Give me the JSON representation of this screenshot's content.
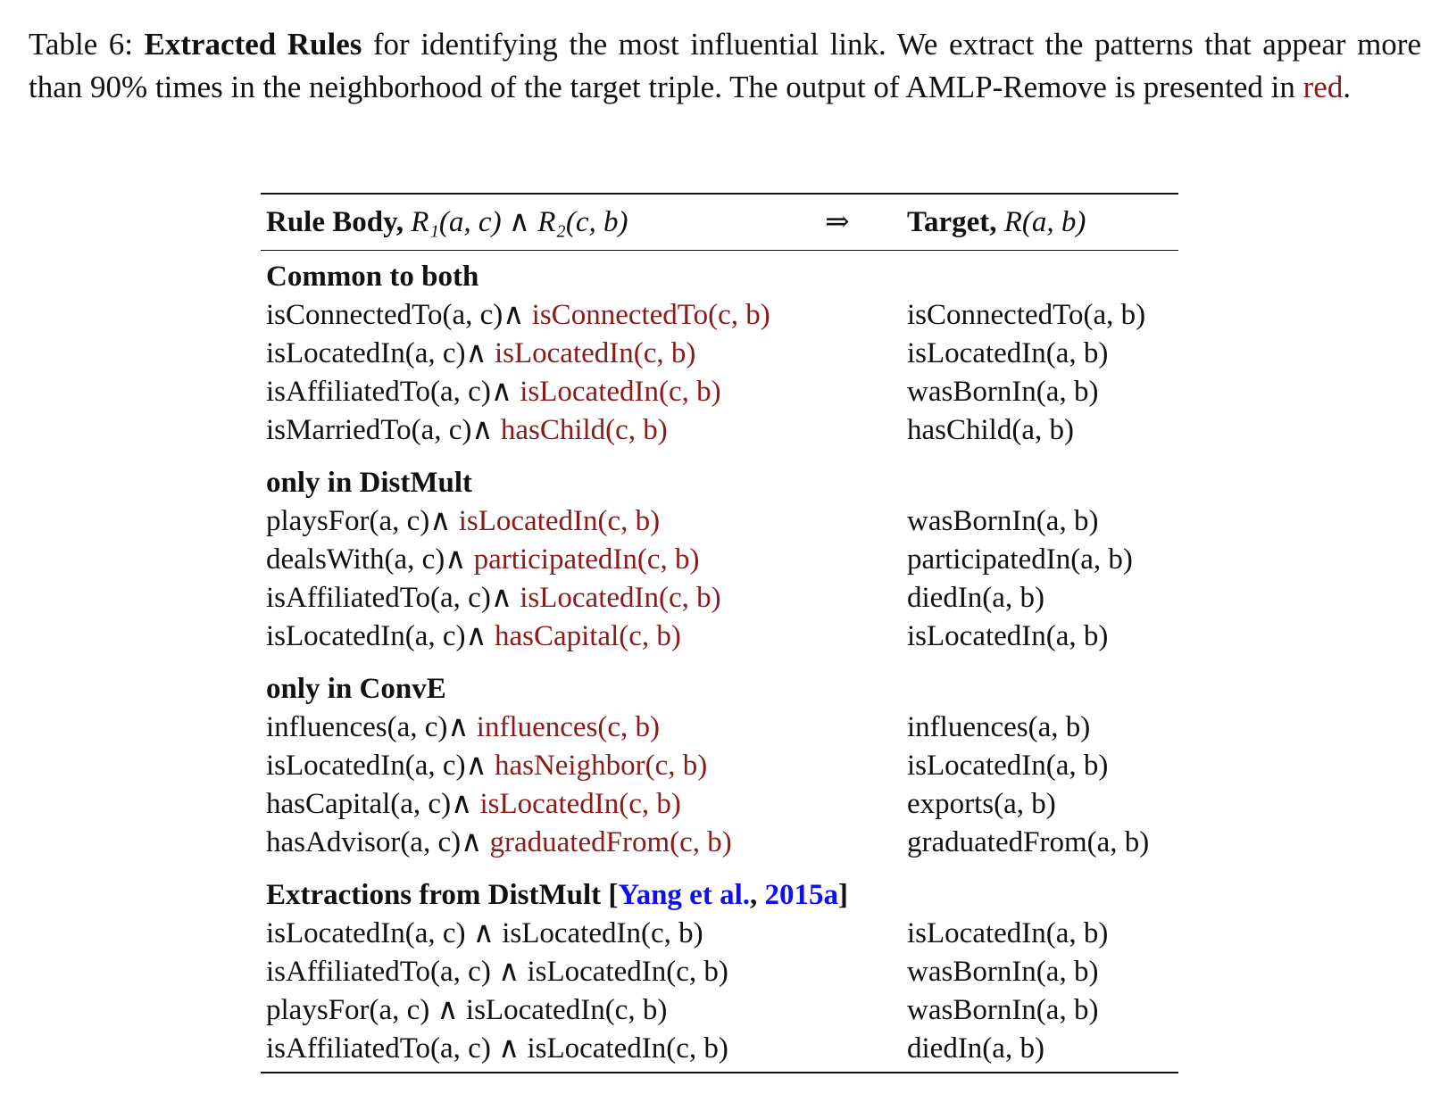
{
  "caption": {
    "label": "Table 6: ",
    "title": "Extracted Rules",
    "text1": " for identifying the most influential link. We extract the patterns that appear more than 90% times in the neighborhood of the target triple. The output of AMLP-Remove is presented in ",
    "red_word": "red",
    "text2": "."
  },
  "header": {
    "rule_body_label": "Rule Body, ",
    "rule_body_math": "R₁(a, c) ∧ R₂(c, b)",
    "arrow": "⇒",
    "target_label": "Target, ",
    "target_math": "R(a, b)"
  },
  "sections": [
    {
      "title": "Common to both",
      "rows": [
        {
          "body1": "isConnectedTo(a, c)∧ ",
          "body2": "isConnectedTo(c, b)",
          "target": "isConnectedTo(a, b)"
        },
        {
          "body1": "isLocatedIn(a, c)∧ ",
          "body2": "isLocatedIn(c, b)",
          "target": "isLocatedIn(a, b)"
        },
        {
          "body1": "isAffiliatedTo(a, c)∧ ",
          "body2": "isLocatedIn(c, b)",
          "target": "wasBornIn(a, b)"
        },
        {
          "body1": "isMarriedTo(a, c)∧ ",
          "body2": "hasChild(c, b)",
          "target": "hasChild(a, b)"
        }
      ]
    },
    {
      "title": "only in DistMult",
      "rows": [
        {
          "body1": "playsFor(a, c)∧ ",
          "body2": "isLocatedIn(c, b)",
          "target": "wasBornIn(a, b)"
        },
        {
          "body1": "dealsWith(a, c)∧ ",
          "body2": "participatedIn(c, b)",
          "target": "participatedIn(a, b)"
        },
        {
          "body1": "isAffiliatedTo(a, c)∧ ",
          "body2": "isLocatedIn(c, b)",
          "target": "diedIn(a, b)"
        },
        {
          "body1": "isLocatedIn(a, c)∧ ",
          "body2": "hasCapital(c, b)",
          "target": "isLocatedIn(a, b)"
        }
      ]
    },
    {
      "title": "only in ConvE",
      "rows": [
        {
          "body1": "influences(a, c)∧ ",
          "body2": "influences(c, b)",
          "target": "influences(a, b)"
        },
        {
          "body1": "isLocatedIn(a, c)∧ ",
          "body2": "hasNeighbor(c, b)",
          "target": "isLocatedIn(a, b)"
        },
        {
          "body1": "hasCapital(a, c)∧ ",
          "body2": "isLocatedIn(c, b)",
          "target": "exports(a, b)"
        },
        {
          "body1": "hasAdvisor(a, c)∧ ",
          "body2": "graduatedFrom(c, b)",
          "target": "graduatedFrom(a, b)"
        }
      ]
    }
  ],
  "extraction": {
    "title_prefix": "Extractions from DistMult [",
    "cite_author": "Yang et al.",
    "cite_sep": ", ",
    "cite_year": "2015a",
    "title_suffix": "]",
    "rows": [
      {
        "body": "isLocatedIn(a, c) ∧ isLocatedIn(c, b)",
        "target": "isLocatedIn(a, b)"
      },
      {
        "body": "isAffiliatedTo(a, c) ∧ isLocatedIn(c, b)",
        "target": "wasBornIn(a, b)"
      },
      {
        "body": "playsFor(a, c) ∧ isLocatedIn(c, b)",
        "target": "wasBornIn(a, b)"
      },
      {
        "body": "isAffiliatedTo(a, c) ∧ isLocatedIn(c, b)",
        "target": "diedIn(a, b)"
      }
    ]
  }
}
